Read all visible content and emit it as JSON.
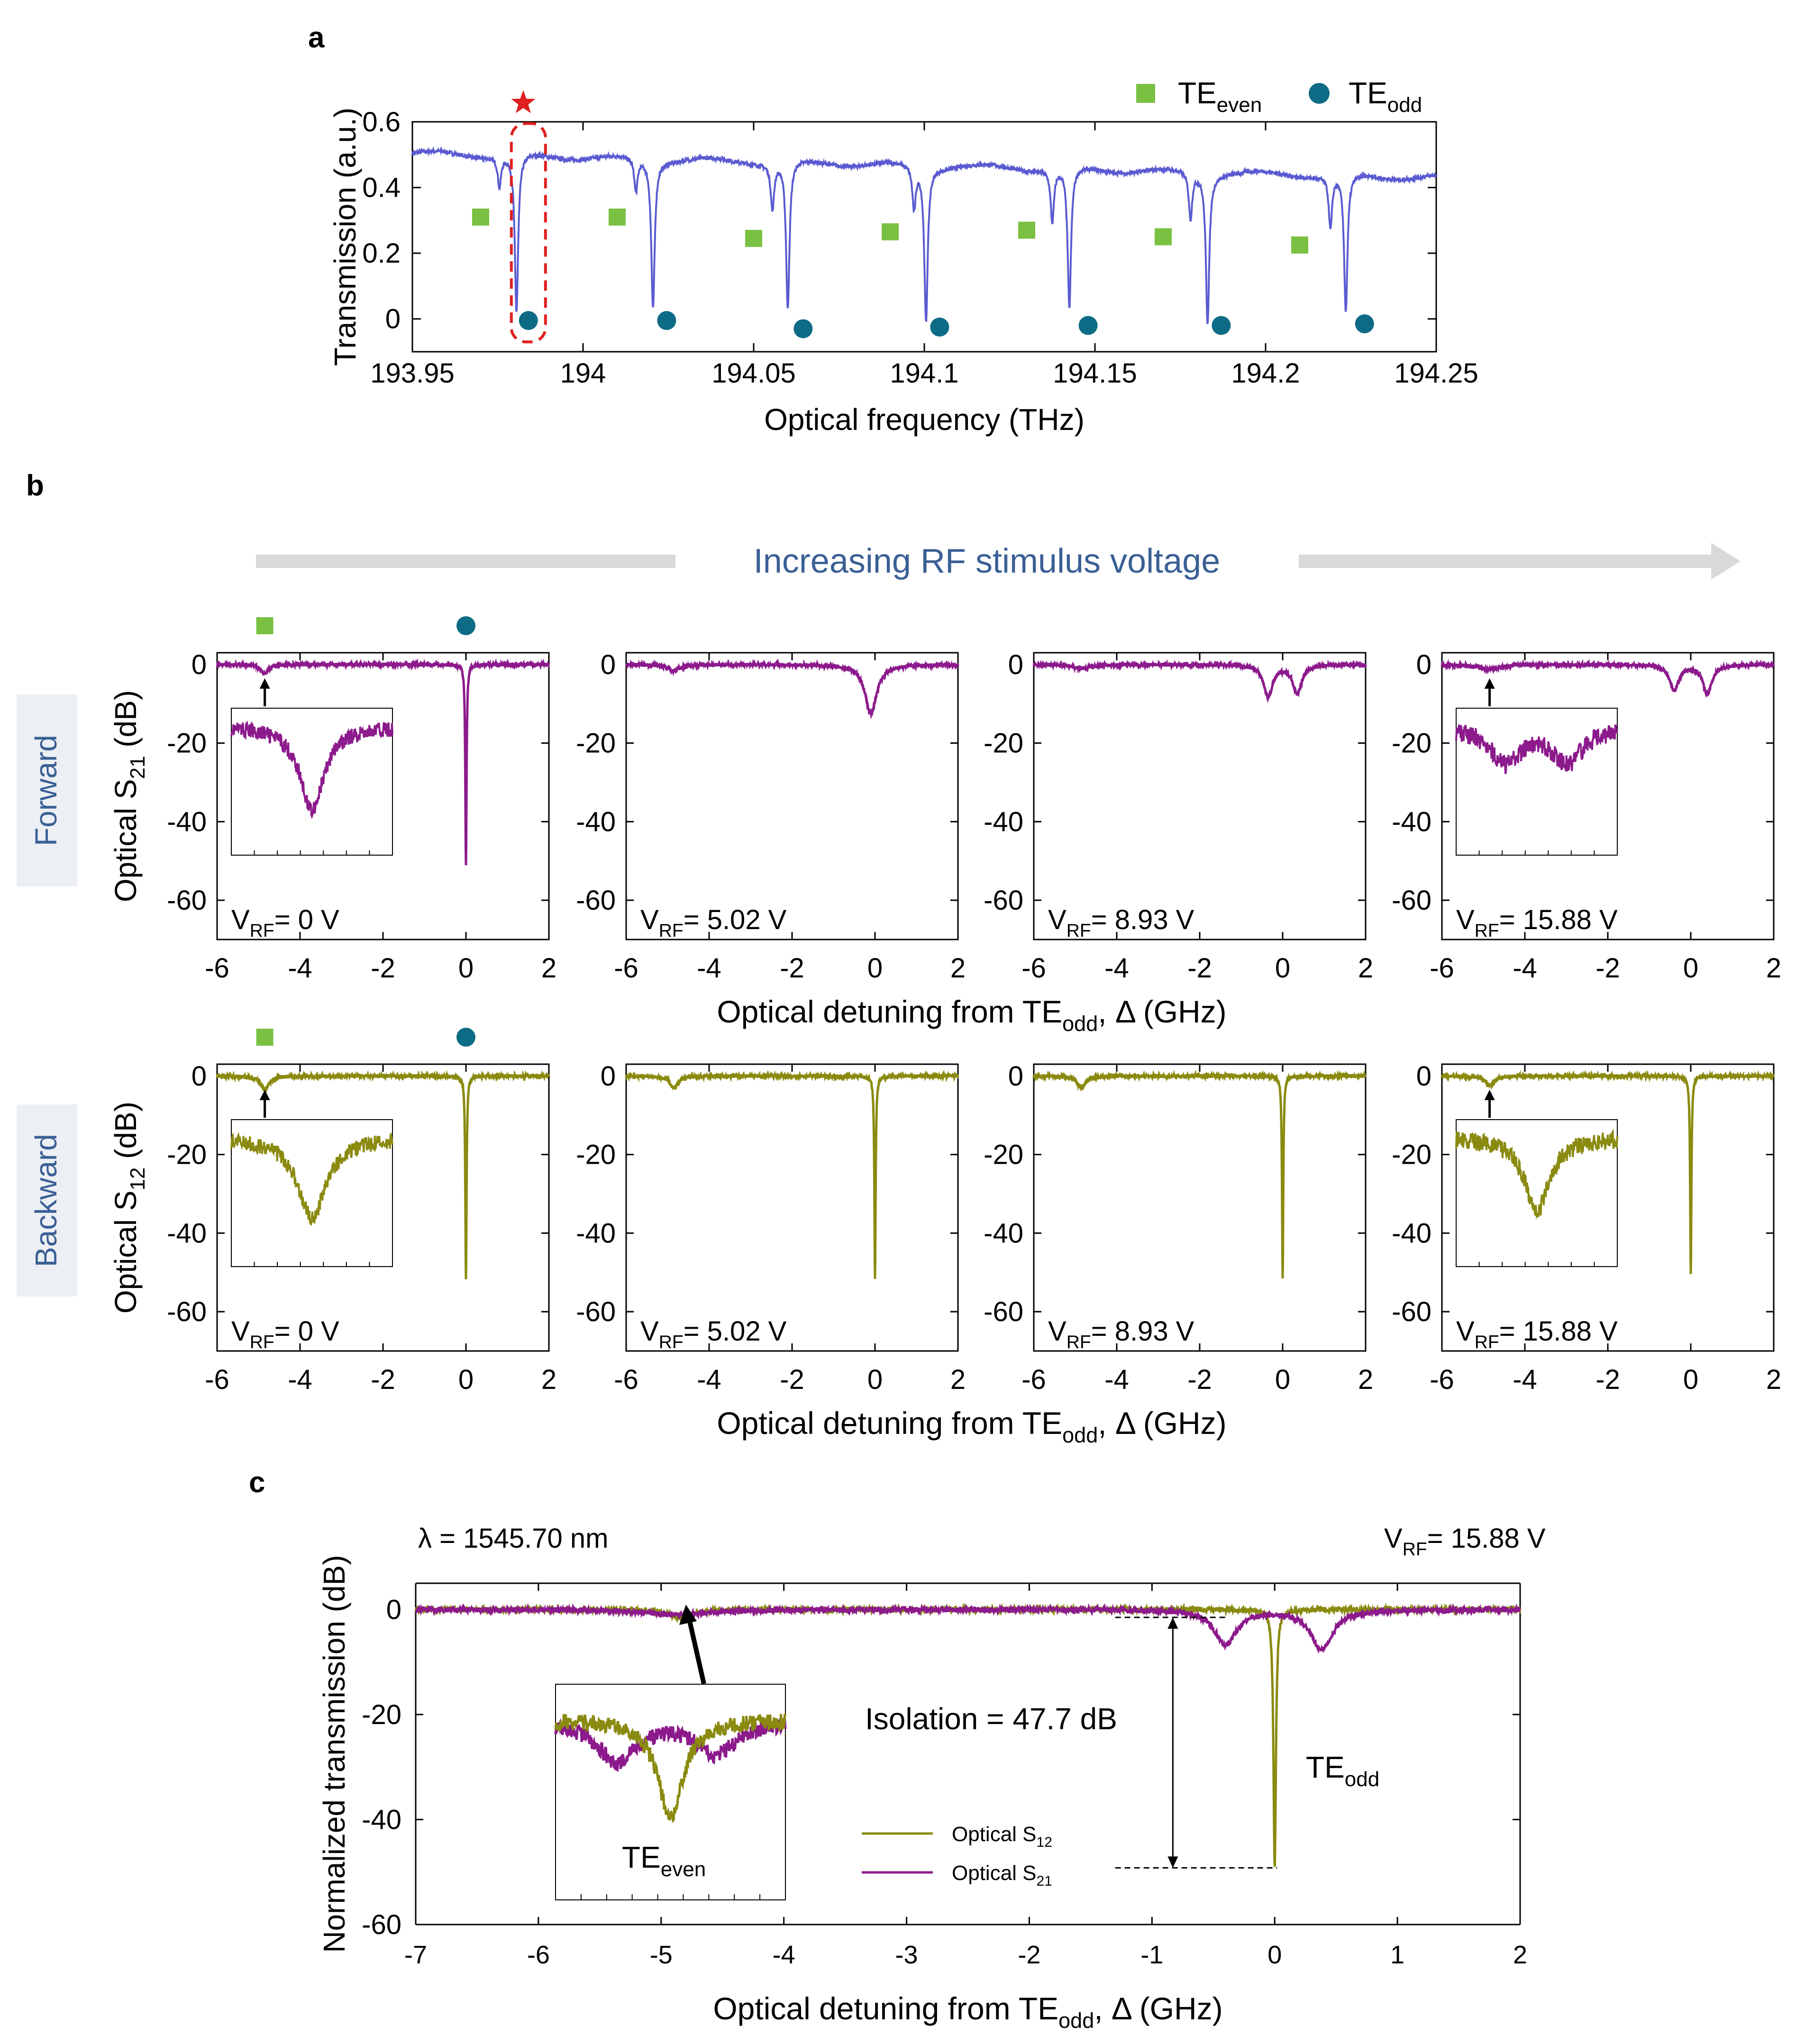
{
  "panel_labels": {
    "a": "a",
    "b": "b",
    "c": "c"
  },
  "colors": {
    "spectrum": "#5a5bd1",
    "te_even": "#7ac143",
    "te_odd": "#0e6b85",
    "forward": "#8c1a8c",
    "backward": "#8a8a10",
    "star": "#e02020",
    "dashed_box": "#e02020",
    "arrow_gray": "#d9d9d9",
    "header_blue": "#3a5f95",
    "row_label_bg": "#eceff3"
  },
  "chart_data": [
    {
      "id": "a",
      "type": "line",
      "title": "",
      "xlabel": "Optical frequency (THz)",
      "ylabel": "Transmission (a.u.)",
      "xlim": [
        193.95,
        194.25
      ],
      "ylim": [
        -0.1,
        0.6
      ],
      "xticks": [
        193.95,
        194,
        194.05,
        194.1,
        194.15,
        194.2,
        194.25
      ],
      "xtick_labels": [
        "193.95",
        "194",
        "194.05",
        "194.1",
        "194.15",
        "194.2",
        "194.25"
      ],
      "yticks": [
        0,
        0.2,
        0.4,
        0.6
      ],
      "ytick_labels": [
        "0",
        "0.2",
        "0.4",
        "0.6"
      ],
      "baseline": {
        "start": 0.505,
        "end": 0.43
      },
      "resonances": [
        {
          "x": 193.9755,
          "depth": 0.09,
          "width": 0.0006
        },
        {
          "x": 193.9805,
          "depth": 0.48,
          "width": 0.0006
        },
        {
          "x": 194.0155,
          "depth": 0.1,
          "width": 0.0006
        },
        {
          "x": 194.0205,
          "depth": 0.45,
          "width": 0.0006
        },
        {
          "x": 194.0555,
          "depth": 0.14,
          "width": 0.0006
        },
        {
          "x": 194.06,
          "depth": 0.45,
          "width": 0.0006
        },
        {
          "x": 194.097,
          "depth": 0.13,
          "width": 0.0006
        },
        {
          "x": 194.1005,
          "depth": 0.47,
          "width": 0.0006
        },
        {
          "x": 194.1375,
          "depth": 0.16,
          "width": 0.0006
        },
        {
          "x": 194.1425,
          "depth": 0.43,
          "width": 0.0006
        },
        {
          "x": 194.178,
          "depth": 0.14,
          "width": 0.0006
        },
        {
          "x": 194.183,
          "depth": 0.45,
          "width": 0.0006
        },
        {
          "x": 194.219,
          "depth": 0.16,
          "width": 0.0006
        },
        {
          "x": 194.2235,
          "depth": 0.42,
          "width": 0.0006
        }
      ],
      "te_even_points": [
        {
          "x": 193.97,
          "y": 0.31
        },
        {
          "x": 194.01,
          "y": 0.31
        },
        {
          "x": 194.05,
          "y": 0.245
        },
        {
          "x": 194.09,
          "y": 0.265
        },
        {
          "x": 194.13,
          "y": 0.27
        },
        {
          "x": 194.17,
          "y": 0.25
        },
        {
          "x": 194.21,
          "y": 0.225
        }
      ],
      "te_odd_points": [
        {
          "x": 193.984,
          "y": -0.005
        },
        {
          "x": 194.0245,
          "y": -0.005
        },
        {
          "x": 194.0645,
          "y": -0.03
        },
        {
          "x": 194.1045,
          "y": -0.025
        },
        {
          "x": 194.148,
          "y": -0.02
        },
        {
          "x": 194.187,
          "y": -0.02
        },
        {
          "x": 194.229,
          "y": -0.015
        }
      ],
      "highlight_box": {
        "x": [
          193.979,
          193.989
        ],
        "y": [
          -0.07,
          0.595
        ]
      },
      "star": {
        "x": 193.9825,
        "y": 0.66
      },
      "legend": {
        "position": "top-right",
        "entries": [
          {
            "name": "TE",
            "sub": "even",
            "marker": "square"
          },
          {
            "name": "TE",
            "sub": "odd",
            "marker": "circle"
          }
        ]
      }
    },
    {
      "id": "b",
      "type": "line",
      "header": "Increasing RF stimulus voltage",
      "xlabel_main": "Optical detuning from TE",
      "xlabel_sub": "odd",
      "xlabel_tail": ", Δ (GHz)",
      "xlim": [
        -6,
        2
      ],
      "ylim": [
        -70,
        3
      ],
      "xticks": [
        -6,
        -4,
        -2,
        0,
        2
      ],
      "xtick_labels": [
        "-6",
        "-4",
        "-2",
        "0",
        "2"
      ],
      "yticks": [
        0,
        -20,
        -40,
        -60
      ],
      "ytick_labels": [
        "0",
        "-20",
        "-40",
        "-60"
      ],
      "rows": [
        {
          "label": "Forward",
          "ylabel_main": "Optical S",
          "ylabel_sub": "21",
          "ylabel_tail": " (dB)",
          "series": [
            {
              "voltage": "0 V",
              "dips": [
                {
                  "x": -4.85,
                  "depth": 2.5,
                  "width": 0.1
                },
                {
                  "x": 0,
                  "depth": 51.5,
                  "width": 0.018
                }
              ],
              "markers": true,
              "inset": {
                "dips": [
                  {
                    "x": -4.85,
                    "depth": 28,
                    "width": 0.12
                  }
                ],
                "noise": 1.3
              }
            },
            {
              "voltage": "5.02 V",
              "dips": [
                {
                  "x": -4.85,
                  "depth": 1.5,
                  "width": 0.18
                },
                {
                  "x": -0.1,
                  "depth": 12.5,
                  "width": 0.17
                }
              ],
              "markers": false
            },
            {
              "voltage": "8.93 V",
              "dips": [
                {
                  "x": -4.85,
                  "depth": 1.0,
                  "width": 0.25
                },
                {
                  "x": -0.35,
                  "depth": 8.2,
                  "width": 0.13
                },
                {
                  "x": 0.35,
                  "depth": 7.2,
                  "width": 0.13
                }
              ],
              "markers": false
            },
            {
              "voltage": "15.88 V",
              "dips": [
                {
                  "x": -4.85,
                  "depth": 1.2,
                  "width": 0.3
                },
                {
                  "x": -0.4,
                  "depth": 6.5,
                  "width": 0.13
                },
                {
                  "x": 0.4,
                  "depth": 7.5,
                  "width": 0.13
                }
              ],
              "markers": false,
              "inset": {
                "dips": [
                  {
                    "x": -5.1,
                    "depth": 12,
                    "width": 0.15
                  },
                  {
                    "x": -4.6,
                    "depth": 12,
                    "width": 0.15
                  }
                ],
                "noise": 1.6
              }
            }
          ]
        },
        {
          "label": "Backward",
          "ylabel_main": "Optical S",
          "ylabel_sub": "12",
          "ylabel_tail": " (dB)",
          "series": [
            {
              "voltage": "0 V",
              "dips": [
                {
                  "x": -4.85,
                  "depth": 3.5,
                  "width": 0.12
                },
                {
                  "x": 0,
                  "depth": 51.5,
                  "width": 0.018
                }
              ],
              "markers": true,
              "inset": {
                "dips": [
                  {
                    "x": -4.85,
                    "depth": 27,
                    "width": 0.14
                  }
                ],
                "noise": 1.3
              }
            },
            {
              "voltage": "5.02 V",
              "dips": [
                {
                  "x": -4.85,
                  "depth": 3.0,
                  "width": 0.12
                },
                {
                  "x": 0,
                  "depth": 51.5,
                  "width": 0.018
                }
              ],
              "markers": false
            },
            {
              "voltage": "8.93 V",
              "dips": [
                {
                  "x": -4.85,
                  "depth": 3.0,
                  "width": 0.12
                },
                {
                  "x": 0,
                  "depth": 51.5,
                  "width": 0.018
                }
              ],
              "markers": false
            },
            {
              "voltage": "15.88 V",
              "dips": [
                {
                  "x": -4.85,
                  "depth": 2.5,
                  "width": 0.12
                },
                {
                  "x": 0,
                  "depth": 50.5,
                  "width": 0.018
                }
              ],
              "markers": false,
              "inset": {
                "dips": [
                  {
                    "x": -4.85,
                    "depth": 25,
                    "width": 0.12
                  }
                ],
                "noise": 1.5
              }
            }
          ]
        }
      ],
      "voltage_prefix": "V",
      "voltage_sub": "RF",
      "voltage_eq": "= "
    },
    {
      "id": "c",
      "type": "line",
      "xlabel_main": "Optical detuning from TE",
      "xlabel_sub": "odd",
      "xlabel_tail": ", Δ (GHz)",
      "ylabel": "Normalized transmission (dB)",
      "xlim": [
        -7,
        2
      ],
      "ylim": [
        -60,
        5
      ],
      "xticks": [
        -7,
        -6,
        -5,
        -4,
        -3,
        -2,
        -1,
        0,
        1,
        2
      ],
      "xtick_labels": [
        "-7",
        "-6",
        "-5",
        "-4",
        "-3",
        "-2",
        "-1",
        "0",
        "1",
        "2"
      ],
      "yticks": [
        0,
        -20,
        -40,
        -60
      ],
      "ytick_labels": [
        "0",
        "-20",
        "-40",
        "-60"
      ],
      "wavelength_text": "λ = 1545.70 nm",
      "voltage_text_main": "V",
      "voltage_text_sub": "RF",
      "voltage_text_tail": "= 15.88 V",
      "isolation_text": "Isolation = 47.7 dB",
      "isolation_value_db": 47.7,
      "isolation_top_db": -1.5,
      "isolation_bottom_db": -49.2,
      "te_odd_label": "TE",
      "te_odd_sub": "odd",
      "te_even_label": "TE",
      "te_even_sub": "even",
      "series": [
        {
          "name": "Optical S",
          "sub": "12",
          "color_key": "backward",
          "dips": [
            {
              "x": -4.85,
              "depth": 1.5,
              "width": 0.12
            },
            {
              "x": 0,
              "depth": 49.2,
              "width": 0.012
            }
          ]
        },
        {
          "name": "Optical S",
          "sub": "21",
          "color_key": "forward",
          "dips": [
            {
              "x": -4.85,
              "depth": 1.0,
              "width": 0.3
            },
            {
              "x": -0.4,
              "depth": 6.5,
              "width": 0.11
            },
            {
              "x": 0.38,
              "depth": 7.5,
              "width": 0.11
            }
          ]
        }
      ],
      "inset": {
        "backward_dips": [
          {
            "x": -4.85,
            "depth": 24,
            "width": 0.1
          }
        ],
        "forward_dips": [
          {
            "x": -5.2,
            "depth": 10,
            "width": 0.16
          },
          {
            "x": -4.55,
            "depth": 8,
            "width": 0.16
          }
        ]
      },
      "legend": {
        "position": "lower-center"
      }
    }
  ]
}
